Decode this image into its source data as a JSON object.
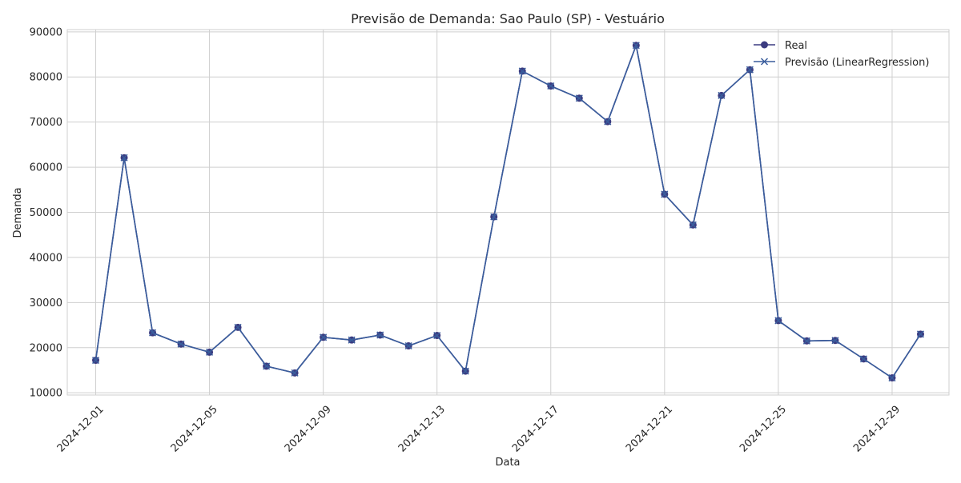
{
  "chart_data": {
    "type": "line",
    "title": "Previsão de Demanda: Sao Paulo (SP) - Vestuário",
    "xlabel": "Data",
    "ylabel": "Demanda",
    "ylim": [
      9500,
      90500
    ],
    "xlim": [
      "2024-11-30",
      "2024-12-31"
    ],
    "grid": true,
    "legend_position": "top-right",
    "x_ticks": [
      "2024-12-01",
      "2024-12-05",
      "2024-12-09",
      "2024-12-13",
      "2024-12-17",
      "2024-12-21",
      "2024-12-25",
      "2024-12-29"
    ],
    "y_ticks": [
      10000,
      20000,
      30000,
      40000,
      50000,
      60000,
      70000,
      80000,
      90000
    ],
    "x": [
      "2024-12-01",
      "2024-12-02",
      "2024-12-03",
      "2024-12-04",
      "2024-12-05",
      "2024-12-06",
      "2024-12-07",
      "2024-12-08",
      "2024-12-09",
      "2024-12-10",
      "2024-12-11",
      "2024-12-12",
      "2024-12-13",
      "2024-12-14",
      "2024-12-15",
      "2024-12-16",
      "2024-12-17",
      "2024-12-18",
      "2024-12-19",
      "2024-12-20",
      "2024-12-21",
      "2024-12-22",
      "2024-12-23",
      "2024-12-24",
      "2024-12-25",
      "2024-12-26",
      "2024-12-27",
      "2024-12-28",
      "2024-12-29",
      "2024-12-30"
    ],
    "series": [
      {
        "name": "Real",
        "marker": "circle",
        "color": "#3b3b80",
        "values": [
          17200,
          62100,
          23300,
          20800,
          19000,
          24500,
          15900,
          14400,
          22300,
          21700,
          22800,
          20400,
          22700,
          14800,
          49000,
          81300,
          78000,
          75300,
          70100,
          87000,
          54000,
          47200,
          75900,
          81600,
          26000,
          21500,
          21600,
          17500,
          13300,
          23000
        ]
      },
      {
        "name": "Previsão (LinearRegression)",
        "marker": "x",
        "color": "#3a5d9c",
        "values": [
          17200,
          62100,
          23300,
          20800,
          19000,
          24500,
          15900,
          14400,
          22300,
          21700,
          22800,
          20400,
          22700,
          14800,
          49000,
          81300,
          78000,
          75300,
          70100,
          87000,
          54000,
          47200,
          75900,
          81600,
          26000,
          21500,
          21600,
          17500,
          13300,
          23000
        ]
      }
    ]
  }
}
